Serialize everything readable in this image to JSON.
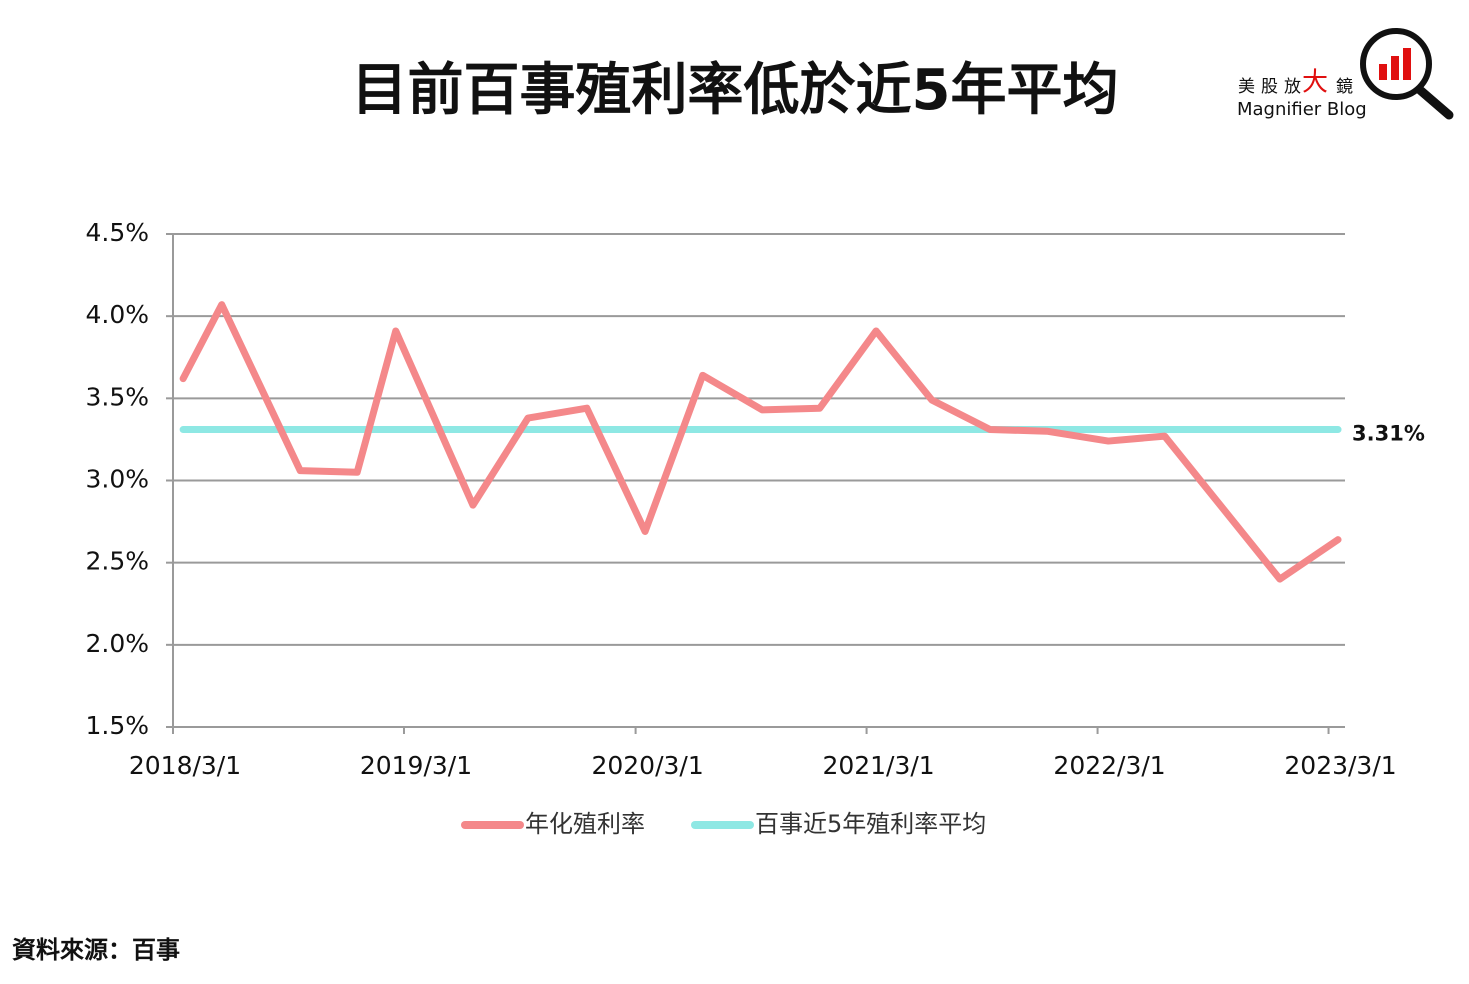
{
  "chart_data": {
    "type": "line",
    "title": "目前百事殖利率低於近5年平均",
    "logo": {
      "pre": "美股放",
      "mid": "大",
      "post": "鏡",
      "sub": "Magnifier Blog"
    },
    "source": "資料來源：百事",
    "x": [
      "2018/3/17",
      "2018/5/17",
      "2018/9/18",
      "2018/12/17",
      "2019/2/16",
      "2019/6/18",
      "2019/9/13",
      "2019/12/15",
      "2020/3/16",
      "2020/6/15",
      "2020/9/17",
      "2020/12/17",
      "2021/3/16",
      "2021/6/12",
      "2021/9/12",
      "2021/12/11",
      "2022/3/18",
      "2022/6/15",
      "2022/12/14",
      "2023/3/16"
    ],
    "xlim": [
      "2018/3/1",
      "2023/3/27"
    ],
    "xticks": [
      "2018/3/1",
      "2019/3/1",
      "2020/3/1",
      "2021/3/1",
      "2022/3/1",
      "2023/3/1"
    ],
    "ylim": [
      1.5,
      4.5
    ],
    "yticks": [
      {
        "value": 1.5,
        "label": "1.5%"
      },
      {
        "value": 2,
        "label": "2.0%"
      },
      {
        "value": 2.5,
        "label": "2.5%"
      },
      {
        "value": 3,
        "label": "3.0%"
      },
      {
        "value": 3.5,
        "label": "3.5%"
      },
      {
        "value": 4,
        "label": "4.0%"
      },
      {
        "value": 4.5,
        "label": "4.5%"
      }
    ],
    "grid": true,
    "legend": "bottom",
    "series": [
      {
        "name": "年化殖利率",
        "color": "#f4888a",
        "values": [
          3.62,
          4.07,
          3.06,
          3.05,
          3.91,
          2.85,
          3.38,
          3.44,
          2.69,
          3.64,
          3.43,
          3.44,
          3.91,
          3.49,
          3.31,
          3.3,
          3.24,
          3.27,
          2.4,
          2.64
        ]
      },
      {
        "name": "百事近5年殖利率平均",
        "color": "#8ee8e4",
        "x": [
          "2018/3/17",
          "2023/3/16"
        ],
        "values": [
          3.31,
          3.31
        ],
        "value_labels": [
          null,
          "3.31%"
        ]
      }
    ]
  }
}
